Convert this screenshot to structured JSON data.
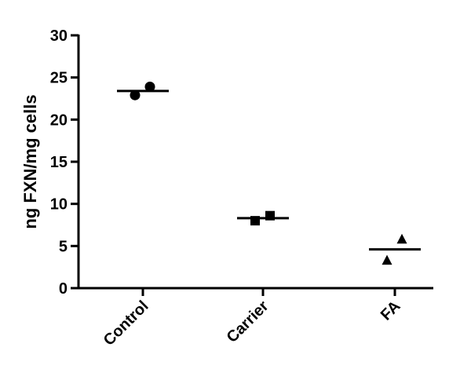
{
  "chart_data": {
    "type": "scatter",
    "title": "",
    "xlabel": "",
    "ylabel": "ng FXN/mg cells",
    "ylim": [
      0,
      30
    ],
    "yticks": [
      0,
      5,
      10,
      15,
      20,
      25,
      30
    ],
    "categories": [
      "Control",
      "Carrier",
      "FA"
    ],
    "grid": false,
    "legend": "none",
    "colors": {
      "marker": "#000000",
      "axis": "#000000"
    },
    "series": [
      {
        "category": "Control",
        "marker": "circle",
        "values": [
          22.9,
          23.9
        ],
        "mean": 23.4
      },
      {
        "category": "Carrier",
        "marker": "square",
        "values": [
          8.0,
          8.6
        ],
        "mean": 8.3
      },
      {
        "category": "FA",
        "marker": "triangle",
        "values": [
          3.3,
          5.8
        ],
        "mean": 4.6
      }
    ]
  }
}
